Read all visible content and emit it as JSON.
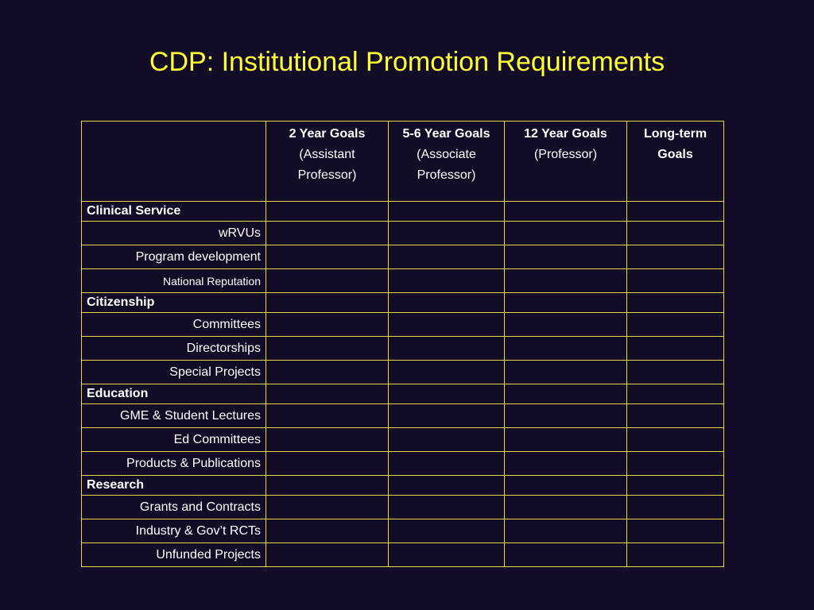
{
  "title": "CDP: Institutional Promotion Requirements",
  "table": {
    "headers": [
      {
        "main": "",
        "sub": ""
      },
      {
        "main": "2 Year Goals",
        "sub": "(Assistant Professor)"
      },
      {
        "main": "5-6 Year Goals",
        "sub": "(Associate Professor)"
      },
      {
        "main": "12 Year Goals",
        "sub": "(Professor)"
      },
      {
        "main": "Long-term Goals",
        "sub": ""
      }
    ],
    "rows": [
      {
        "label": "Clinical Service",
        "type": "section"
      },
      {
        "label": "wRVUs",
        "type": "item"
      },
      {
        "label": "Program development",
        "type": "item"
      },
      {
        "label": "National Reputation",
        "type": "item"
      },
      {
        "label": "Citizenship",
        "type": "section"
      },
      {
        "label": "Committees",
        "type": "item"
      },
      {
        "label": "Directorships",
        "type": "item"
      },
      {
        "label": "Special Projects",
        "type": "item"
      },
      {
        "label": "Education",
        "type": "section"
      },
      {
        "label": "GME & Student Lectures",
        "type": "item"
      },
      {
        "label": "Ed Committees",
        "type": "item"
      },
      {
        "label": "Products & Publications",
        "type": "item"
      },
      {
        "label": "Research",
        "type": "section"
      },
      {
        "label": "Grants and Contracts",
        "type": "item"
      },
      {
        "label": "Industry & Gov’t RCTs",
        "type": "item"
      },
      {
        "label": "Unfunded Projects",
        "type": "item"
      }
    ]
  }
}
